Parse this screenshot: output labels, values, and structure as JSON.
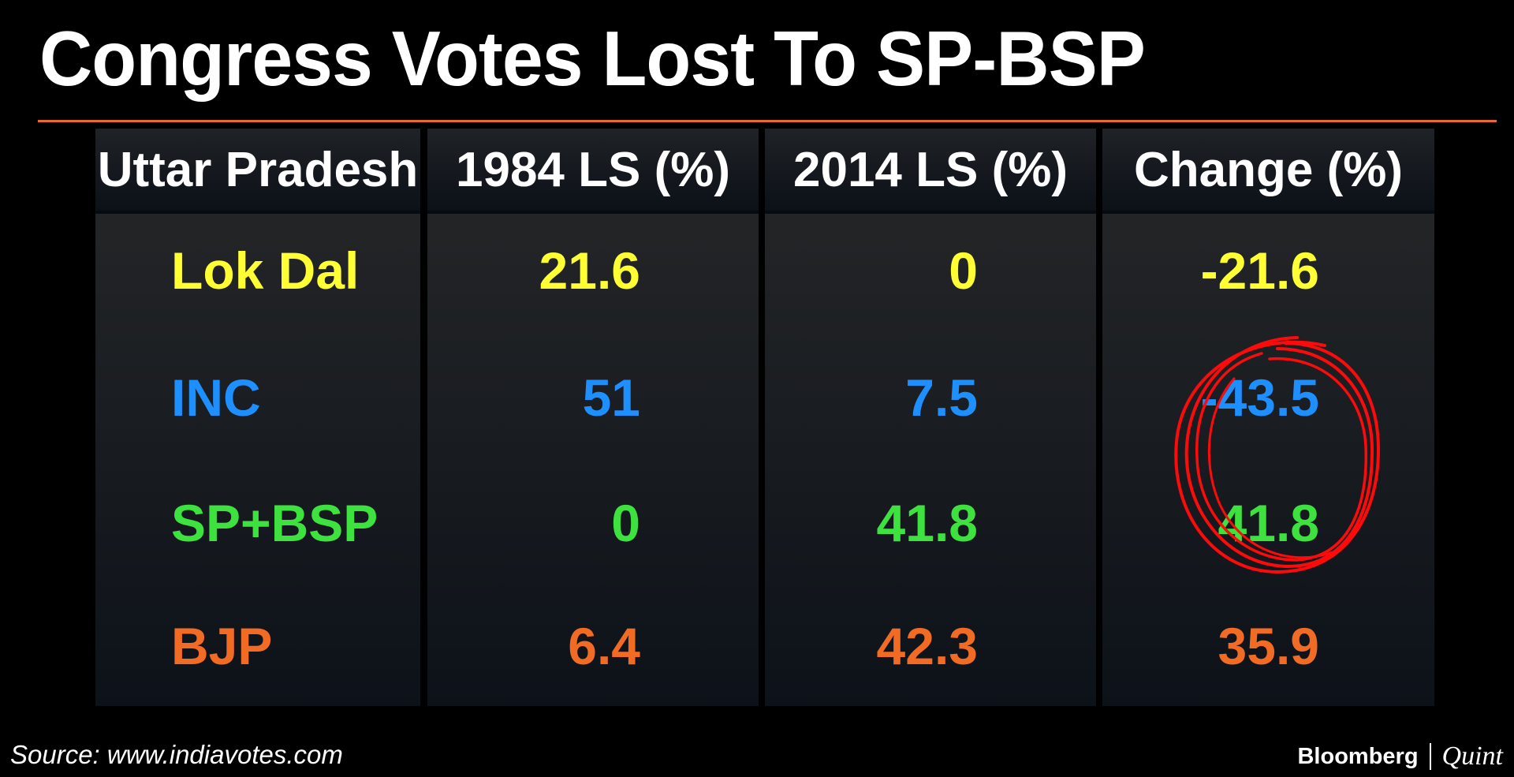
{
  "chart_data": {
    "type": "table",
    "title": "Congress Votes Lost To SP-BSP",
    "columns": [
      "Uttar Pradesh",
      "1984 LS (%)",
      "2014 LS (%)",
      "Change (%)"
    ],
    "rows": [
      {
        "party": "Lok Dal",
        "v1984": "21.6",
        "v2014": "0",
        "change": "-21.6",
        "color": "#ffff33"
      },
      {
        "party": "INC",
        "v1984": "51",
        "v2014": "7.5",
        "change": "-43.5",
        "color": "#1e8fff"
      },
      {
        "party": "SP+BSP",
        "v1984": "0",
        "v2014": "41.8",
        "change": "41.8",
        "color": "#3ee23e"
      },
      {
        "party": "BJP",
        "v1984": "6.4",
        "v2014": "42.3",
        "change": "35.9",
        "color": "#f26b25"
      }
    ]
  },
  "footer": {
    "source": "Source: www.indiavotes.com",
    "brand_primary": "Bloomberg",
    "brand_secondary": "Quint"
  },
  "colors": {
    "rule": "#e8692f",
    "circle": "#ff0a0a"
  }
}
